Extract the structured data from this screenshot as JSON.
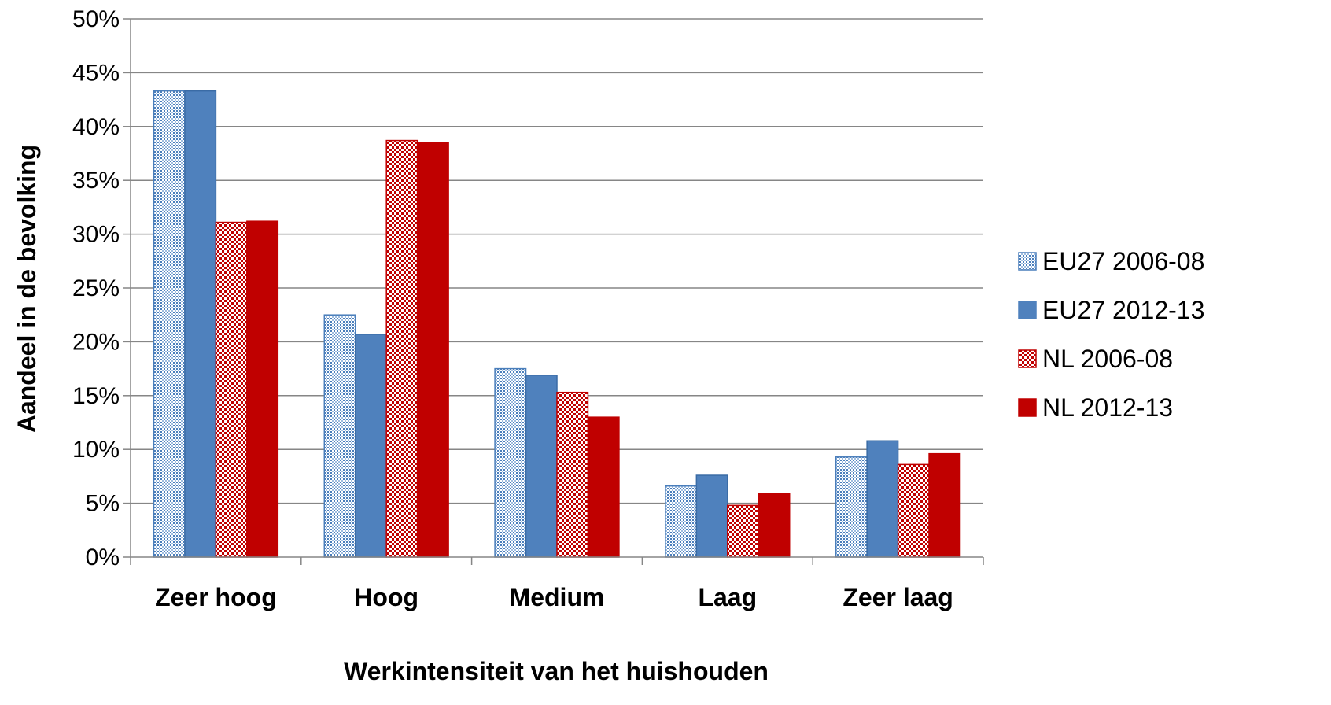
{
  "chart_data": {
    "type": "bar",
    "xlabel": "Werkintensiteit van het huishouden",
    "ylabel": "Aandeel in de bevolking",
    "ylim": [
      0,
      50
    ],
    "yticks": [
      "0%",
      "5%",
      "10%",
      "15%",
      "20%",
      "25%",
      "30%",
      "35%",
      "40%",
      "45%",
      "50%"
    ],
    "grid": true,
    "legend_position": "right",
    "categories": [
      "Zeer hoog",
      "Hoog",
      "Medium",
      "Laag",
      "Zeer laag"
    ],
    "series": [
      {
        "name": "EU27 2006-08",
        "values": [
          43.3,
          22.5,
          17.5,
          6.6,
          9.3
        ],
        "color": "#4a7ebb",
        "pattern": "dotted-light"
      },
      {
        "name": "EU27 2012-13",
        "values": [
          43.3,
          20.7,
          16.9,
          7.6,
          10.8
        ],
        "color": "#4f81bd",
        "pattern": "solid"
      },
      {
        "name": "NL 2006-08",
        "values": [
          31.1,
          38.7,
          15.3,
          4.8,
          8.6
        ],
        "color": "#c00000",
        "pattern": "checker"
      },
      {
        "name": "NL 2012-13",
        "values": [
          31.2,
          38.5,
          13.0,
          5.9,
          9.6
        ],
        "color": "#c00000",
        "pattern": "solid"
      }
    ]
  }
}
